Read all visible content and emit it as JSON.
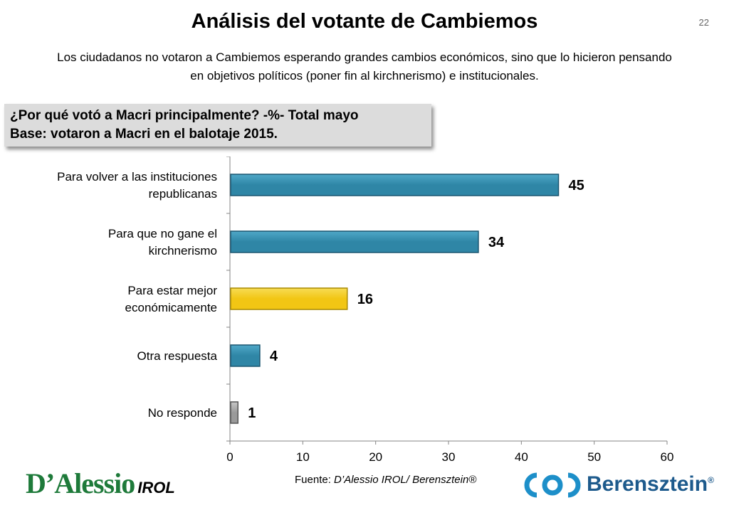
{
  "header": {
    "title": "Análisis del votante de Cambiemos",
    "page_number": "22",
    "subtitle_line1": "Los ciudadanos no votaron a Cambiemos esperando grandes cambios económicos, sino que lo hicieron pensando",
    "subtitle_line2": "en objetivos políticos (poner fin al kirchnerismo) e institucionales."
  },
  "question": {
    "line1": "¿Por qué votó a Macri principalmente? -%- Total mayo",
    "line2": "Base: votaron a Macri en el balotaje 2015."
  },
  "footer": {
    "source_prefix": "Fuente: ",
    "source_text": "D’Alessio IROL/ Berensztein®",
    "logo_left_main": "D’Alessio",
    "logo_left_sub": "IROL",
    "logo_right": "Berensztein",
    "logo_right_mark": "®"
  },
  "colors": {
    "teal": "#2f86a6",
    "teal_edge": "#1c5670",
    "gold": "#f2c614",
    "gold_edge": "#a98a00",
    "gray": "#9a9a9a",
    "gray_edge": "#555555",
    "axis": "#868686"
  },
  "chart_data": {
    "type": "bar",
    "orientation": "horizontal",
    "categories": [
      [
        "Para volver a las instituciones",
        "republicanas"
      ],
      [
        "Para que no gane el",
        "kirchnerismo"
      ],
      [
        "Para estar mejor",
        "económicamente"
      ],
      [
        "Otra respuesta"
      ],
      [
        "No responde"
      ]
    ],
    "values": [
      45,
      34,
      16,
      4,
      1
    ],
    "value_labels": [
      "45",
      "34",
      "16",
      "4",
      "1"
    ],
    "bar_colors": [
      "teal",
      "teal",
      "gold",
      "teal",
      "gray"
    ],
    "xlim": [
      0,
      60
    ],
    "xticks": [
      0,
      10,
      20,
      30,
      40,
      50,
      60
    ],
    "grid": false,
    "legend": "none"
  }
}
